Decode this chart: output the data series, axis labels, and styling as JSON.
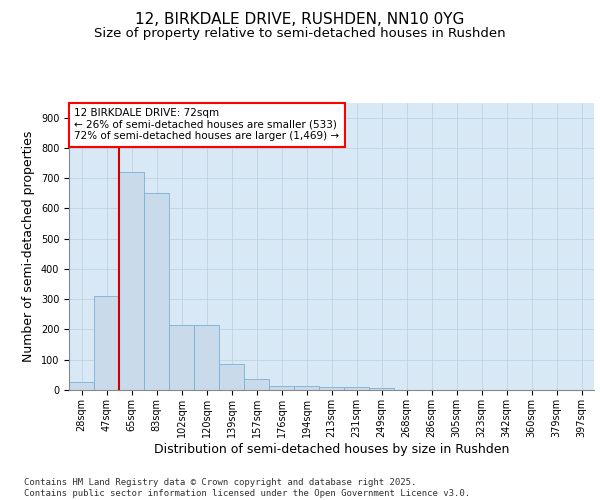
{
  "title_line1": "12, BIRKDALE DRIVE, RUSHDEN, NN10 0YG",
  "title_line2": "Size of property relative to semi-detached houses in Rushden",
  "xlabel": "Distribution of semi-detached houses by size in Rushden",
  "ylabel": "Number of semi-detached properties",
  "categories": [
    "28sqm",
    "47sqm",
    "65sqm",
    "83sqm",
    "102sqm",
    "120sqm",
    "139sqm",
    "157sqm",
    "176sqm",
    "194sqm",
    "213sqm",
    "231sqm",
    "249sqm",
    "268sqm",
    "286sqm",
    "305sqm",
    "323sqm",
    "342sqm",
    "360sqm",
    "379sqm",
    "397sqm"
  ],
  "values": [
    25,
    310,
    720,
    650,
    215,
    215,
    85,
    37,
    13,
    13,
    10,
    10,
    8,
    0,
    0,
    0,
    0,
    0,
    0,
    0,
    0
  ],
  "bar_color": "#c9daea",
  "bar_edge_color": "#7ab0d4",
  "grid_color": "#b8cfe0",
  "background_color": "#d8e8f4",
  "vline_color": "#cc0000",
  "vline_x_index": 2,
  "annotation_text": "12 BIRKDALE DRIVE: 72sqm\n← 26% of semi-detached houses are smaller (533)\n72% of semi-detached houses are larger (1,469) →",
  "ylim": [
    0,
    950
  ],
  "yticks": [
    0,
    100,
    200,
    300,
    400,
    500,
    600,
    700,
    800,
    900
  ],
  "footer_text": "Contains HM Land Registry data © Crown copyright and database right 2025.\nContains public sector information licensed under the Open Government Licence v3.0.",
  "title_fontsize": 11,
  "subtitle_fontsize": 9.5,
  "axis_label_fontsize": 9,
  "tick_fontsize": 7,
  "annotation_fontsize": 7.5,
  "footer_fontsize": 6.5
}
